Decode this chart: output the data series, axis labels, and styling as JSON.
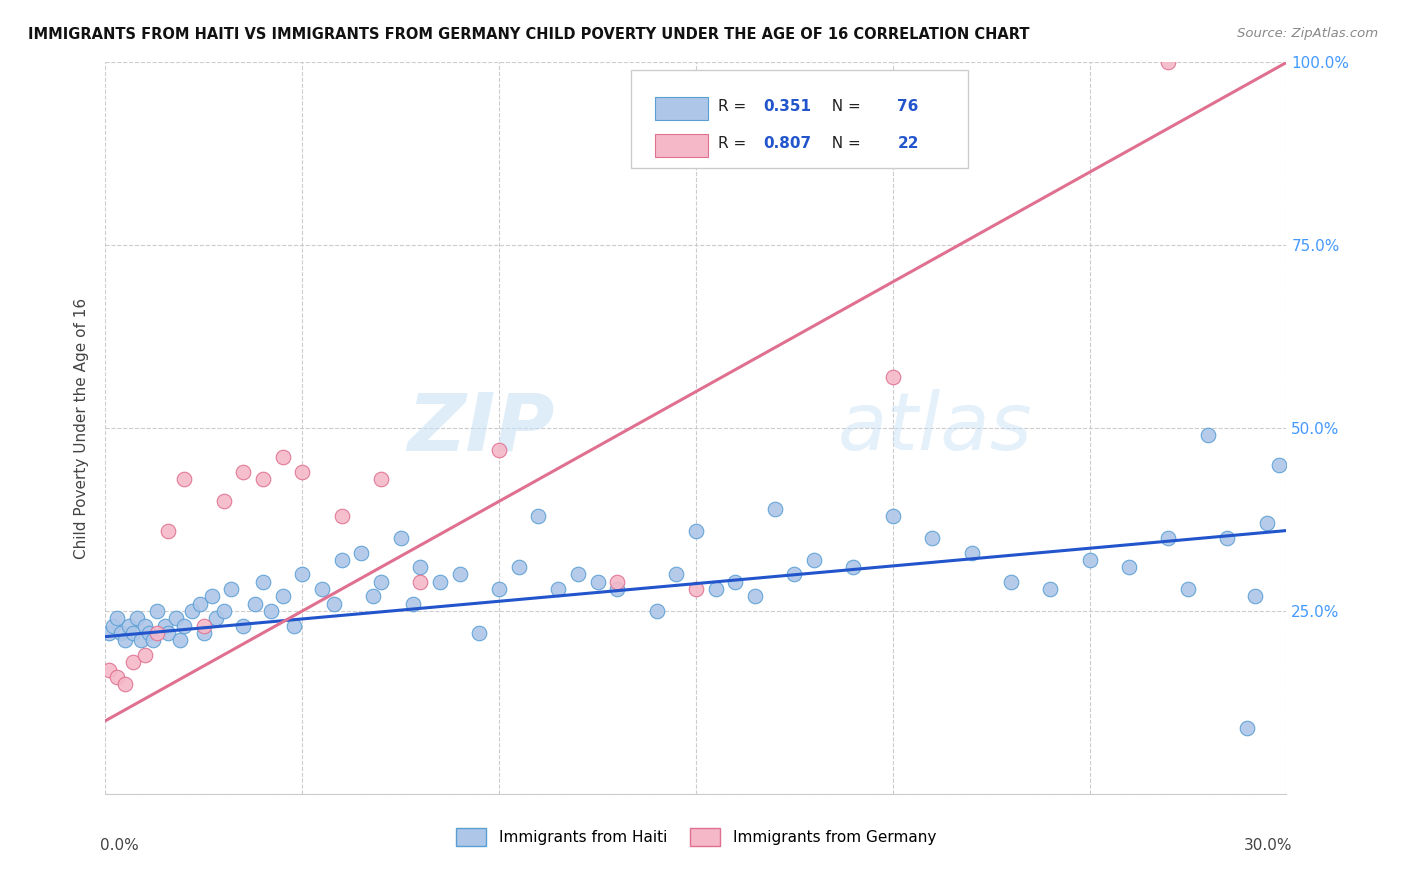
{
  "title": "IMMIGRANTS FROM HAITI VS IMMIGRANTS FROM GERMANY CHILD POVERTY UNDER THE AGE OF 16 CORRELATION CHART",
  "source": "Source: ZipAtlas.com",
  "ylabel": "Child Poverty Under the Age of 16",
  "haiti_color": "#aec6e8",
  "haiti_edge_color": "#5a9fd4",
  "germany_color": "#f4b8c8",
  "germany_edge_color": "#e07090",
  "haiti_line_color": "#2255cc",
  "germany_line_color": "#e07090",
  "R_haiti": 0.351,
  "N_haiti": 76,
  "R_germany": 0.807,
  "N_germany": 22,
  "watermark": "ZIPatlas",
  "haiti_x": [
    0.001,
    0.002,
    0.003,
    0.004,
    0.005,
    0.006,
    0.007,
    0.008,
    0.009,
    0.01,
    0.011,
    0.012,
    0.013,
    0.015,
    0.016,
    0.018,
    0.019,
    0.02,
    0.022,
    0.024,
    0.025,
    0.027,
    0.028,
    0.03,
    0.032,
    0.035,
    0.038,
    0.04,
    0.042,
    0.045,
    0.048,
    0.05,
    0.055,
    0.058,
    0.06,
    0.065,
    0.068,
    0.07,
    0.075,
    0.078,
    0.08,
    0.085,
    0.09,
    0.095,
    0.1,
    0.105,
    0.11,
    0.115,
    0.12,
    0.125,
    0.13,
    0.14,
    0.145,
    0.15,
    0.155,
    0.16,
    0.165,
    0.17,
    0.175,
    0.18,
    0.19,
    0.2,
    0.21,
    0.22,
    0.23,
    0.24,
    0.25,
    0.26,
    0.27,
    0.275,
    0.28,
    0.285,
    0.29,
    0.292,
    0.295,
    0.298
  ],
  "haiti_y": [
    0.22,
    0.23,
    0.24,
    0.22,
    0.21,
    0.23,
    0.22,
    0.24,
    0.21,
    0.23,
    0.22,
    0.21,
    0.25,
    0.23,
    0.22,
    0.24,
    0.21,
    0.23,
    0.25,
    0.26,
    0.22,
    0.27,
    0.24,
    0.25,
    0.28,
    0.23,
    0.26,
    0.29,
    0.25,
    0.27,
    0.23,
    0.3,
    0.28,
    0.26,
    0.32,
    0.33,
    0.27,
    0.29,
    0.35,
    0.26,
    0.31,
    0.29,
    0.3,
    0.22,
    0.28,
    0.31,
    0.38,
    0.28,
    0.3,
    0.29,
    0.28,
    0.25,
    0.3,
    0.36,
    0.28,
    0.29,
    0.27,
    0.39,
    0.3,
    0.32,
    0.31,
    0.38,
    0.35,
    0.33,
    0.29,
    0.28,
    0.32,
    0.31,
    0.35,
    0.28,
    0.49,
    0.35,
    0.09,
    0.27,
    0.37,
    0.45
  ],
  "germany_x": [
    0.001,
    0.003,
    0.005,
    0.007,
    0.01,
    0.013,
    0.016,
    0.02,
    0.025,
    0.03,
    0.035,
    0.04,
    0.045,
    0.05,
    0.06,
    0.07,
    0.08,
    0.1,
    0.13,
    0.15,
    0.2,
    0.27
  ],
  "germany_y": [
    0.17,
    0.16,
    0.15,
    0.18,
    0.19,
    0.22,
    0.36,
    0.43,
    0.23,
    0.4,
    0.44,
    0.43,
    0.46,
    0.44,
    0.38,
    0.43,
    0.29,
    0.47,
    0.29,
    0.28,
    0.57,
    1.0
  ],
  "haiti_line_x": [
    0.0,
    0.3
  ],
  "haiti_line_y": [
    0.215,
    0.36
  ],
  "germany_line_x": [
    0.0,
    0.3
  ],
  "germany_line_y": [
    0.1,
    1.0
  ],
  "xlim": [
    0.0,
    0.3
  ],
  "ylim": [
    0.0,
    1.0
  ],
  "yticks": [
    0.0,
    0.25,
    0.5,
    0.75,
    1.0
  ],
  "ytick_labels": [
    "",
    "25.0%",
    "50.0%",
    "75.0%",
    "100.0%"
  ],
  "xtick_left_label": "0.0%",
  "xtick_right_label": "30.0%",
  "legend_haiti_label": "Immigrants from Haiti",
  "legend_germany_label": "Immigrants from Germany"
}
